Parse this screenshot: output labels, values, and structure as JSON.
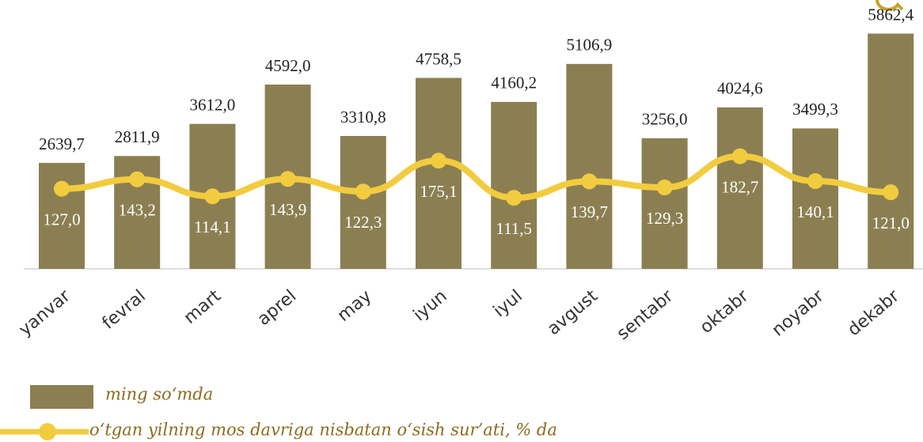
{
  "chart_data": {
    "type": "bar",
    "categories": [
      "yanvar",
      "fevral",
      "mart",
      "aprel",
      "may",
      "iyun",
      "iyul",
      "avgust",
      "sentabr",
      "oktabr",
      "noyabr",
      "dekabr"
    ],
    "series": [
      {
        "name": "ming so‘mda",
        "type": "bar",
        "color": "#8b7f52",
        "values": [
          2639.7,
          2811.9,
          3612.0,
          4592.0,
          3310.8,
          4758.5,
          4160.2,
          5106.9,
          3256.0,
          4024.6,
          3499.3,
          5862.4
        ],
        "value_labels": [
          "2639,7",
          "2811,9",
          "3612,0",
          "4592,0",
          "3310,8",
          "4758,5",
          "4160,2",
          "5106,9",
          "3256,0",
          "4024,6",
          "3499,3",
          "5862,4"
        ]
      },
      {
        "name": "o‘tgan yilning mos davriga nisbatan o‘sish sur’ati, % da",
        "type": "line",
        "axis": "y2",
        "color": "#f2cc3f",
        "values": [
          127.0,
          143.2,
          114.1,
          143.9,
          122.3,
          175.1,
          111.5,
          139.7,
          129.3,
          182.7,
          140.1,
          121.0
        ],
        "value_labels": [
          "127,0",
          "143,2",
          "114,1",
          "143,9",
          "122,3",
          "175,1",
          "111,5",
          "139,7",
          "129,3",
          "182,7",
          "140,1",
          "121,0"
        ]
      }
    ],
    "ylim": [
      0,
      6700
    ],
    "y2lim": [
      -10,
      450
    ]
  }
}
